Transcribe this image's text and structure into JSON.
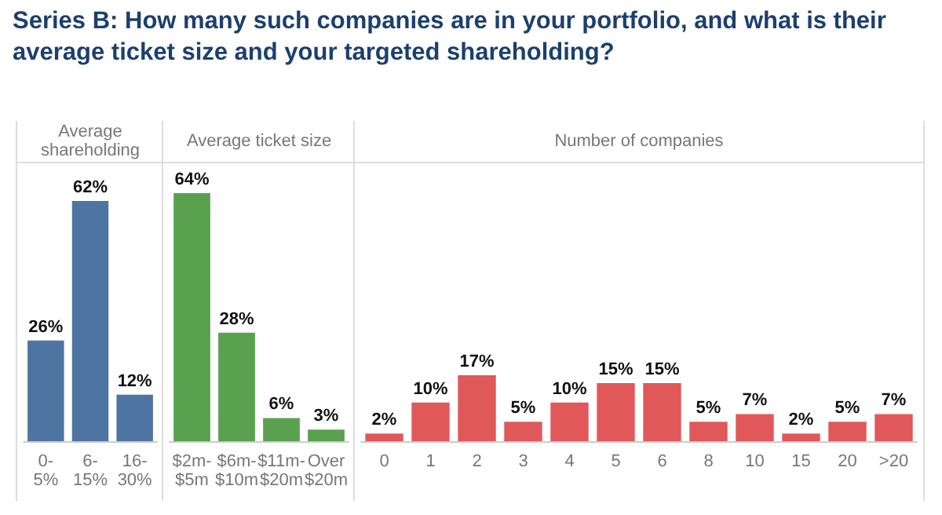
{
  "chart_data": [
    {
      "type": "bar",
      "title": "Average shareholding",
      "annotations": [
        "Series B: How many such companies are in your portfolio, and what is their average ticket size and your targeted shareholding?"
      ],
      "categories": [
        "0-5%",
        "6-15%",
        "16-30%"
      ],
      "values": [
        26,
        62,
        12
      ],
      "value_labels": [
        "26%",
        "62%",
        "12%"
      ],
      "color": "#4e74a2"
    },
    {
      "type": "bar",
      "title": "Average ticket size",
      "categories": [
        "$2m-$5m",
        "$6m-$10m",
        "$11m-$20m",
        "Over $20m"
      ],
      "values": [
        64,
        28,
        6,
        3
      ],
      "value_labels": [
        "64%",
        "28%",
        "6%",
        "3%"
      ],
      "color": "#59a14f"
    },
    {
      "type": "bar",
      "title": "Number of companies",
      "categories": [
        "0",
        "1",
        "2",
        "3",
        "4",
        "5",
        "6",
        "8",
        "10",
        "15",
        "20",
        ">20"
      ],
      "values": [
        2,
        10,
        17,
        5,
        10,
        15,
        15,
        5,
        7,
        2,
        5,
        7
      ],
      "value_labels": [
        "2%",
        "10%",
        "17%",
        "5%",
        "10%",
        "15%",
        "15%",
        "5%",
        "7%",
        "2%",
        "5%",
        "7%"
      ],
      "color": "#e0585a"
    }
  ]
}
